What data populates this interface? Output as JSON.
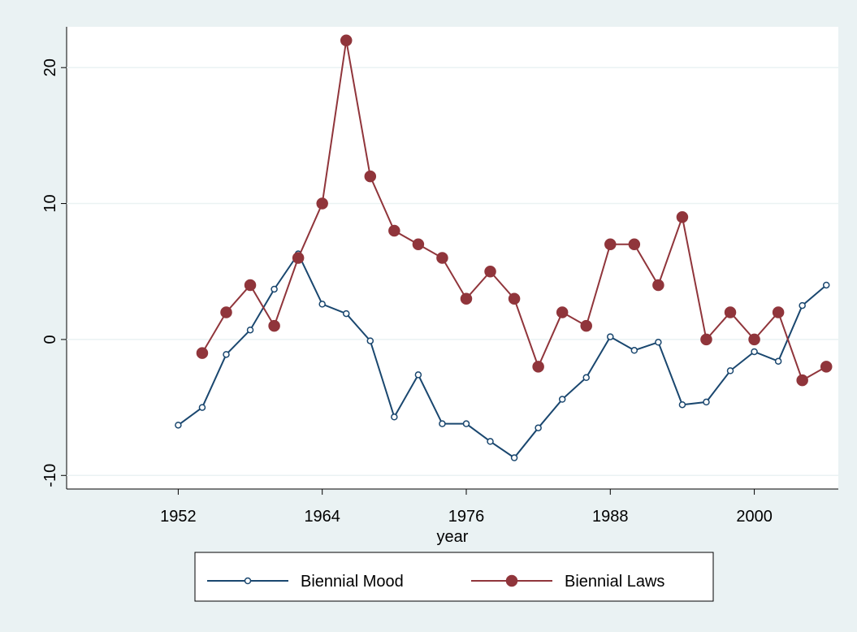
{
  "chart_data": {
    "type": "line",
    "x_label": "year",
    "x": [
      1952,
      1954,
      1956,
      1958,
      1960,
      1962,
      1964,
      1966,
      1968,
      1970,
      1972,
      1974,
      1976,
      1978,
      1980,
      1982,
      1984,
      1986,
      1988,
      1990,
      1992,
      1994,
      1996,
      1998,
      2000,
      2002,
      2004,
      2006
    ],
    "series": [
      {
        "name": "Biennial Mood",
        "color": "#1a476f",
        "marker": "hollow",
        "values": [
          -6.3,
          -5.0,
          -1.1,
          0.7,
          3.7,
          6.3,
          2.6,
          1.9,
          -0.1,
          -5.7,
          -2.6,
          -6.2,
          -6.2,
          -7.5,
          -8.7,
          -6.5,
          -4.4,
          -2.8,
          0.2,
          -0.8,
          -0.2,
          -4.8,
          -4.6,
          -2.3,
          -0.9,
          -1.6,
          2.5,
          4.0
        ]
      },
      {
        "name": "Biennial Laws",
        "color": "#90353b",
        "marker": "filled",
        "values": [
          null,
          -1,
          2,
          4,
          1,
          6,
          10,
          22,
          12,
          8,
          7,
          6,
          3,
          5,
          3,
          -2,
          2,
          1,
          7,
          7,
          4,
          9,
          0,
          2,
          0,
          2,
          -3,
          -2
        ]
      }
    ],
    "xlim": [
      1942.7,
      2007
    ],
    "xticks": [
      1952,
      1964,
      1976,
      1988,
      2000
    ],
    "ylim": [
      -11,
      23
    ],
    "yticks": [
      -10,
      0,
      10,
      20
    ],
    "grid": true,
    "legend": "bottom"
  }
}
